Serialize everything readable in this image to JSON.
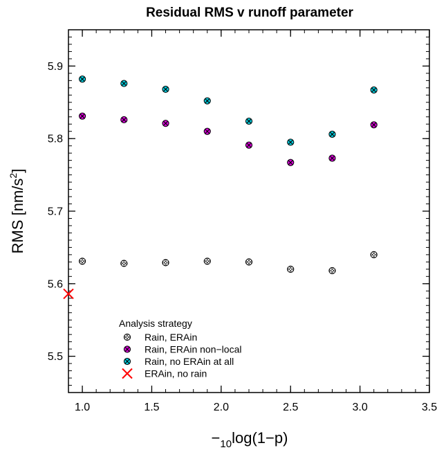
{
  "chart_data": {
    "type": "scatter",
    "title": "Residual RMS v runoff parameter",
    "xlabel": {
      "minus": "−",
      "sub": "10",
      "rest": "log(1−p)"
    },
    "ylabel": {
      "pre": "RMS [nm/s",
      "sup": "2",
      "post": "]"
    },
    "xlim": [
      0.9,
      3.5
    ],
    "ylim": [
      5.45,
      5.95
    ],
    "x_ticks": [
      {
        "v": 1.0,
        "label": "1.0"
      },
      {
        "v": 1.5,
        "label": "1.5"
      },
      {
        "v": 2.0,
        "label": "2.0"
      },
      {
        "v": 2.5,
        "label": "2.5"
      },
      {
        "v": 3.0,
        "label": "3.0"
      },
      {
        "v": 3.5,
        "label": "3.5"
      }
    ],
    "y_ticks": [
      {
        "v": 5.5,
        "label": "5.5"
      },
      {
        "v": 5.6,
        "label": "5.6"
      },
      {
        "v": 5.7,
        "label": "5.7"
      },
      {
        "v": 5.8,
        "label": "5.8"
      },
      {
        "v": 5.9,
        "label": "5.9"
      }
    ],
    "legend": {
      "title": "Analysis strategy",
      "placement": "bottom-left"
    },
    "series": [
      {
        "name": "Rain, ERAin",
        "marker": "circle-x",
        "color": "#000000",
        "x": [
          1.0,
          1.3,
          1.6,
          1.9,
          2.2,
          2.5,
          2.8,
          3.1
        ],
        "y": [
          5.631,
          5.628,
          5.629,
          5.631,
          5.63,
          5.62,
          5.618,
          5.64
        ]
      },
      {
        "name": "Rain, ERAin non−local",
        "marker": "circle-x",
        "color": "#d400d4",
        "x": [
          1.0,
          1.3,
          1.6,
          1.9,
          2.2,
          2.5,
          2.8,
          3.1
        ],
        "y": [
          5.831,
          5.826,
          5.821,
          5.81,
          5.791,
          5.767,
          5.773,
          5.819
        ]
      },
      {
        "name": "Rain, no ERAin at all",
        "marker": "circle-x",
        "color": "#00c8d8",
        "x": [
          1.0,
          1.3,
          1.6,
          1.9,
          2.2,
          2.5,
          2.8,
          3.1
        ],
        "y": [
          5.882,
          5.876,
          5.868,
          5.852,
          5.824,
          5.795,
          5.806,
          5.867
        ]
      },
      {
        "name": "ERAin, no rain",
        "marker": "x",
        "color": "#ff0000",
        "x": [
          0.9
        ],
        "y": [
          5.586
        ]
      }
    ]
  }
}
